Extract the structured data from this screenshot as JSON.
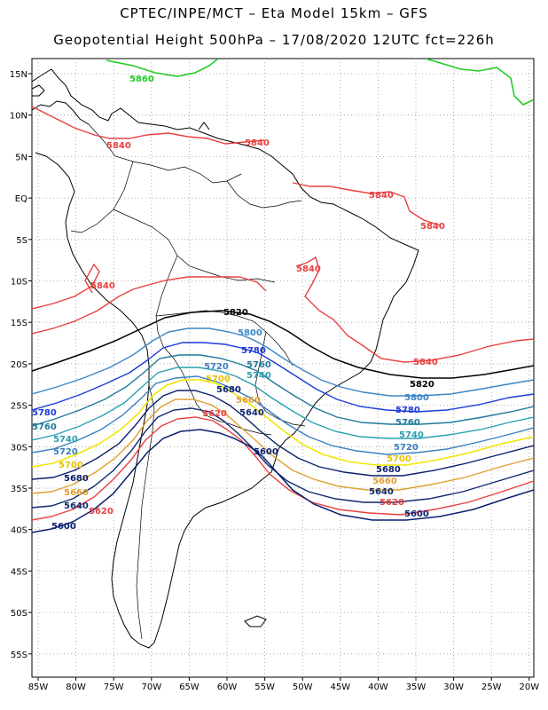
{
  "header": {
    "line1": "CPTEC/INPE/MCT –  Eta Model 15km – GFS",
    "line2": "Geopotential Height 500hPa – 17/08/2020 12UTC fct=226h"
  },
  "axes": {
    "lon_labels": [
      "85W",
      "80W",
      "75W",
      "70W",
      "65W",
      "60W",
      "55W",
      "50W",
      "45W",
      "40W",
      "35W",
      "30W",
      "25W",
      "20W"
    ],
    "lat_labels": [
      "15N",
      "10N",
      "5N",
      "EQ",
      "5S",
      "10S",
      "15S",
      "20S",
      "25S",
      "30S",
      "35S",
      "40S",
      "45S",
      "50S",
      "55S"
    ]
  },
  "contours": {
    "labels": {
      "c5860": "5860",
      "c5840": "5840",
      "c5820": "5820",
      "c5800": "5800",
      "c5780": "5780",
      "c5760": "5760",
      "c5740": "5740",
      "c5720": "5720",
      "c5700": "5700",
      "c5680": "5680",
      "c5660": "5660",
      "c5640": "5640",
      "c5620": "5620",
      "c5600": "5600"
    },
    "colors": {
      "c5860": "#22cc22",
      "c5840": "#e84040",
      "c5820": "#000000",
      "c5800": "#3a86c8",
      "c5780": "#1c3ad8",
      "c5760": "#1e7a9a",
      "c5740": "#2aa0b0",
      "c5720": "#3b7fbf",
      "c5700": "#f2e600",
      "c5680": "#0a1f6e",
      "c5660": "#e0a030",
      "c5640": "#102a70",
      "c5620": "#e84040",
      "c5600": "#0a1f6e"
    }
  }
}
